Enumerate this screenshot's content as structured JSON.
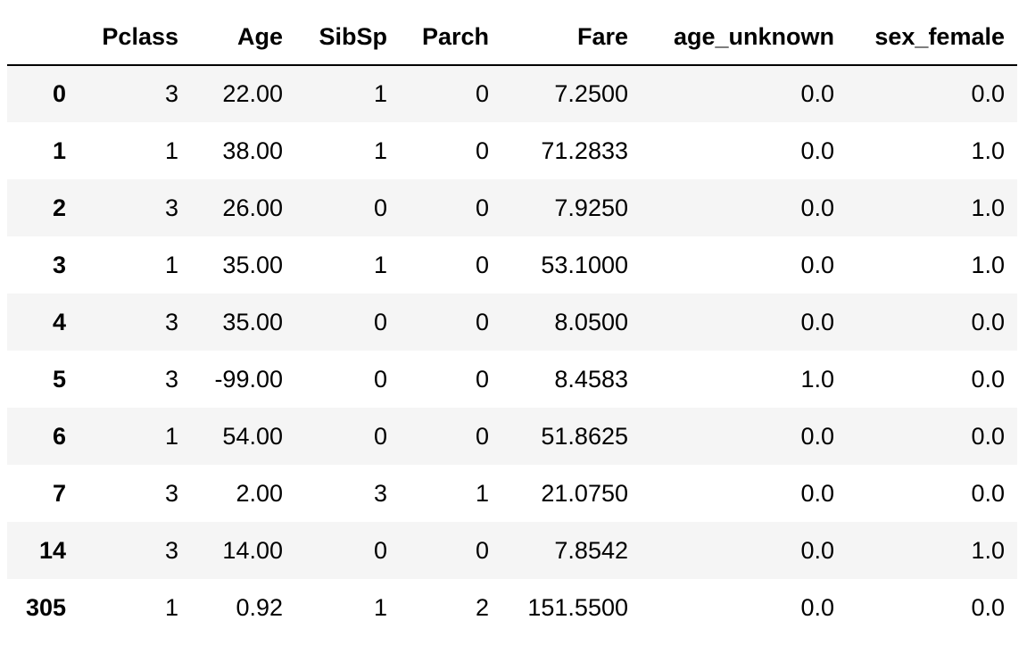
{
  "table": {
    "index_header": "",
    "columns": [
      "Pclass",
      "Age",
      "SibSp",
      "Parch",
      "Fare",
      "age_unknown",
      "sex_female"
    ],
    "rows": [
      {
        "index": "0",
        "cells": [
          "3",
          "22.00",
          "1",
          "0",
          "7.2500",
          "0.0",
          "0.0"
        ]
      },
      {
        "index": "1",
        "cells": [
          "1",
          "38.00",
          "1",
          "0",
          "71.2833",
          "0.0",
          "1.0"
        ]
      },
      {
        "index": "2",
        "cells": [
          "3",
          "26.00",
          "0",
          "0",
          "7.9250",
          "0.0",
          "1.0"
        ]
      },
      {
        "index": "3",
        "cells": [
          "1",
          "35.00",
          "1",
          "0",
          "53.1000",
          "0.0",
          "1.0"
        ]
      },
      {
        "index": "4",
        "cells": [
          "3",
          "35.00",
          "0",
          "0",
          "8.0500",
          "0.0",
          "0.0"
        ]
      },
      {
        "index": "5",
        "cells": [
          "3",
          "-99.00",
          "0",
          "0",
          "8.4583",
          "1.0",
          "0.0"
        ]
      },
      {
        "index": "6",
        "cells": [
          "1",
          "54.00",
          "0",
          "0",
          "51.8625",
          "0.0",
          "0.0"
        ]
      },
      {
        "index": "7",
        "cells": [
          "3",
          "2.00",
          "3",
          "1",
          "21.0750",
          "0.0",
          "0.0"
        ]
      },
      {
        "index": "14",
        "cells": [
          "3",
          "14.00",
          "0",
          "0",
          "7.8542",
          "0.0",
          "1.0"
        ]
      },
      {
        "index": "305",
        "cells": [
          "1",
          "0.92",
          "1",
          "2",
          "151.5500",
          "0.0",
          "0.0"
        ]
      }
    ]
  },
  "colors": {
    "stripe_row": "#f5f5f5",
    "plain_row": "#ffffff",
    "header_rule": "#000000",
    "text": "#000000"
  }
}
